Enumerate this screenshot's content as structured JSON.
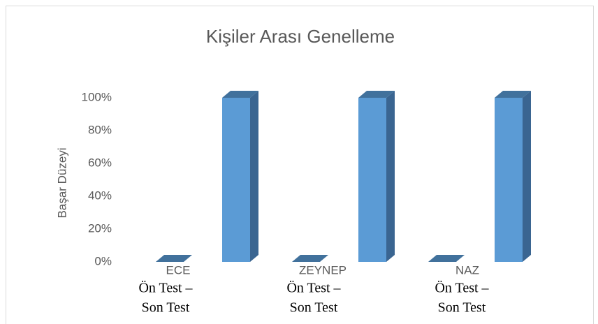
{
  "chart_data": {
    "type": "bar3d",
    "title": "Kişiler Arası Genelleme",
    "y_label": "Başar Düzeyi",
    "categories": [
      "ECE",
      "ZEYNEP",
      "NAZ"
    ],
    "category_notes": [
      [
        "Ön Test –",
        "Son Test"
      ],
      [
        "Ön Test –",
        "Son Test"
      ],
      [
        "Ön Test –",
        "Son Test"
      ]
    ],
    "series": [
      {
        "color": "#5b9bd5",
        "values": [
          0,
          0,
          0
        ]
      },
      {
        "color": "#5b9bd5",
        "values": [
          100,
          100,
          100
        ]
      }
    ],
    "ylim": [
      0,
      100
    ],
    "yticks": [
      {
        "value": 0,
        "label": "0%"
      },
      {
        "value": 20,
        "label": "20%"
      },
      {
        "value": 40,
        "label": "40%"
      },
      {
        "value": 60,
        "label": "60%"
      },
      {
        "value": 80,
        "label": "80%"
      },
      {
        "value": 100,
        "label": "100%"
      }
    ],
    "grid": false
  }
}
